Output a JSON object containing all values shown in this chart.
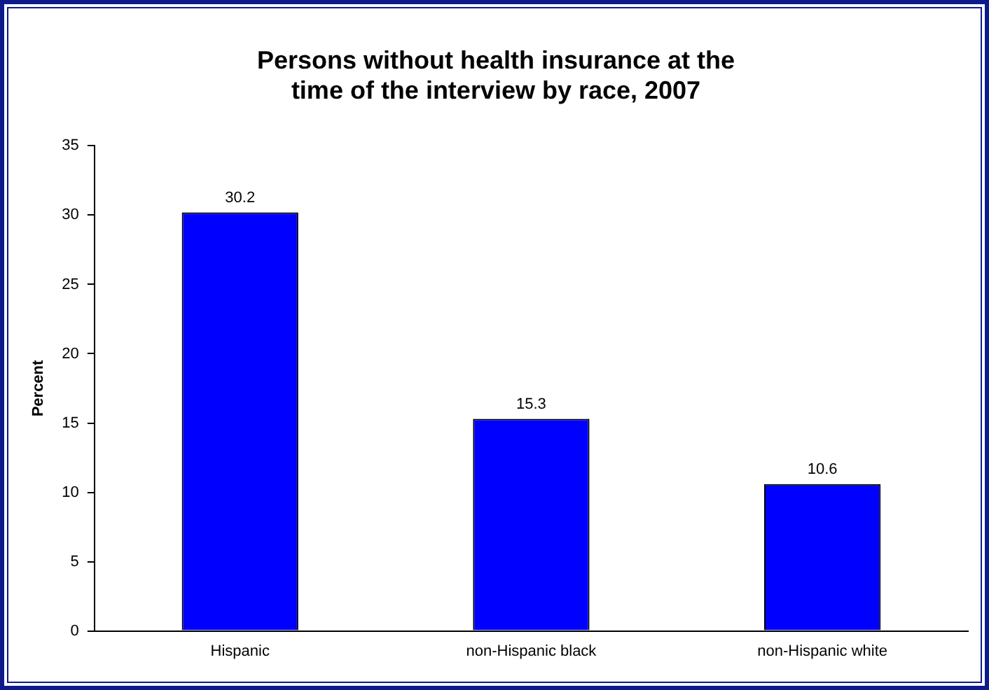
{
  "chart_data": {
    "type": "bar",
    "title": "Persons without health insurance at the time of the interview by race, 2007",
    "ylabel": "Percent",
    "categories": [
      "Hispanic",
      "non-Hispanic black",
      "non-Hispanic white"
    ],
    "values": [
      30.2,
      15.3,
      10.6
    ],
    "color": "#0000ff",
    "ylim": [
      0,
      35
    ],
    "yticks": [
      0,
      5,
      10,
      15,
      20,
      25,
      30,
      35
    ],
    "grid": false,
    "legend": false,
    "data_labels": true
  }
}
